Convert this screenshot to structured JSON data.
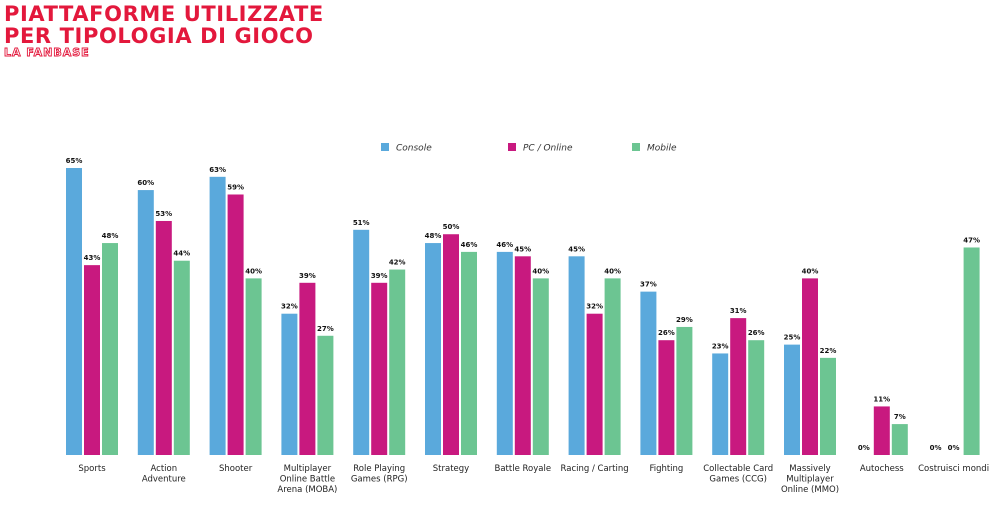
{
  "header": {
    "title_line1": "PIATTAFORME UTILIZZATE",
    "title_line2": "PER TIPOLOGIA DI GIOCO",
    "subtitle": "LA FANBASE"
  },
  "chart_data": {
    "type": "bar",
    "categories": [
      [
        "Sports"
      ],
      [
        "Action",
        "Adventure"
      ],
      [
        "Shooter"
      ],
      [
        "Multiplayer",
        "Online Battle",
        "Arena (MOBA)"
      ],
      [
        "Role Playing",
        "Games (RPG)"
      ],
      [
        "Strategy"
      ],
      [
        "Battle Royale"
      ],
      [
        "Racing / Carting"
      ],
      [
        "Fighting"
      ],
      [
        "Collectable Card",
        "Games (CCG)"
      ],
      [
        "Massively",
        "Multiplayer",
        "Online (MMO)"
      ],
      [
        "Autochess"
      ],
      [
        "Costruisci mondi"
      ]
    ],
    "series": [
      {
        "name": "Console",
        "color": "#5aa9dc",
        "values": [
          65,
          60,
          63,
          32,
          51,
          48,
          46,
          45,
          37,
          23,
          25,
          0,
          0
        ]
      },
      {
        "name": "PC / Online",
        "color": "#c8197f",
        "values": [
          43,
          53,
          59,
          39,
          39,
          50,
          45,
          32,
          26,
          31,
          40,
          11,
          0
        ]
      },
      {
        "name": "Mobile",
        "color": "#6cc592",
        "values": [
          48,
          44,
          40,
          27,
          42,
          46,
          40,
          40,
          29,
          26,
          22,
          7,
          47
        ]
      }
    ],
    "value_suffix": "%",
    "ylim": [
      0,
      65
    ],
    "legend_position": "top-center",
    "grid": false,
    "xlabel": "",
    "ylabel": ""
  }
}
